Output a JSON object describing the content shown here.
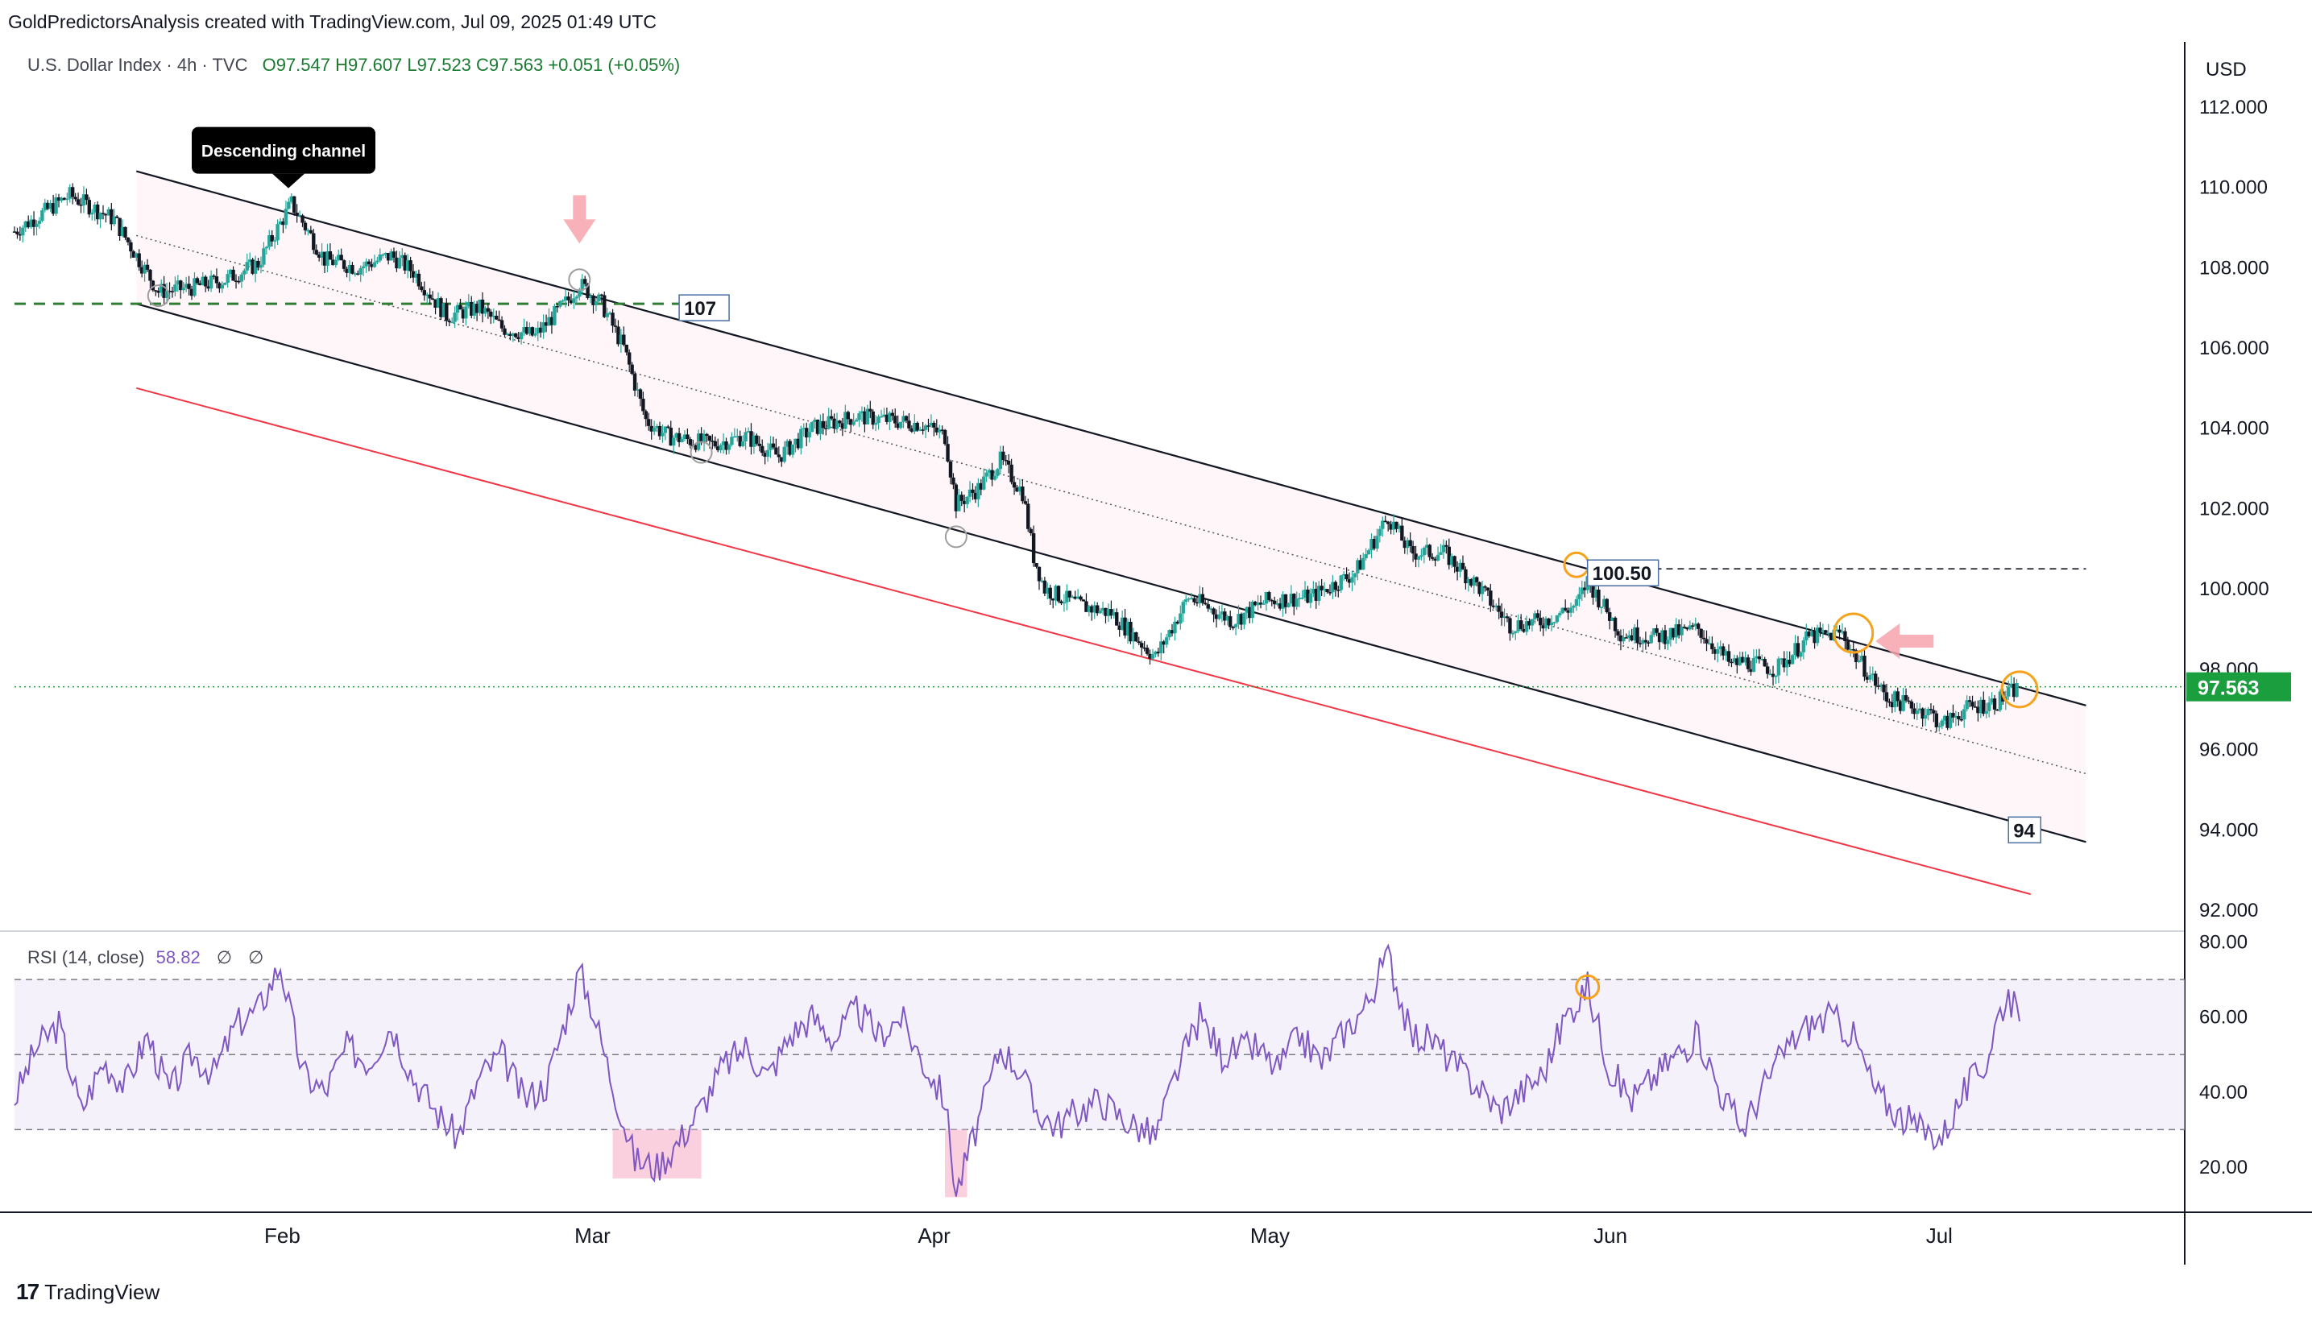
{
  "header": {
    "credit": "GoldPredictorsAnalysis created with TradingView.com, Jul 09, 2025 01:49 UTC"
  },
  "legend": {
    "symbol": "U.S. Dollar Index · 4h · TVC",
    "ohlc": "O97.547  H97.607  L97.523  C97.563  +0.051 (+0.05%)"
  },
  "rsi_legend": {
    "label": "RSI (14, close)",
    "value": "58.82",
    "na1": "∅",
    "na2": "∅"
  },
  "footer": {
    "brand": "TradingView",
    "logo": "17"
  },
  "colors": {
    "candle_up": "#26a69a",
    "candle_down": "#131722",
    "channel": "#131722",
    "red_line": "#f23645",
    "green_level": "#2e7d32",
    "rsi_line": "#7e57c2",
    "rsi_band": "#ede7f6",
    "price_tag": "#1b9e3e",
    "circle_orange": "#f7a21b",
    "arrow_pink": "#f7a3ad"
  },
  "chart_data": [
    {
      "type": "candlestick",
      "title": "U.S. Dollar Index · 4h · TVC",
      "currency": "USD",
      "x_labels": [
        "Feb",
        "Mar",
        "Apr",
        "May",
        "Jun",
        "Jul"
      ],
      "x_range": [
        "2025-01-08",
        "2025-07-20"
      ],
      "y_ticks": [
        "112.000",
        "110.000",
        "108.000",
        "106.000",
        "104.000",
        "102.000",
        "100.000",
        "98.000",
        "96.000",
        "94.000",
        "92.000"
      ],
      "ylim": [
        91.5,
        113.5
      ],
      "last_price": 97.563,
      "last_price_label": "97.563",
      "close_path": [
        [
          "2025-01-08",
          108.9
        ],
        [
          "2025-01-13",
          109.8
        ],
        [
          "2025-01-17",
          109.2
        ],
        [
          "2025-01-21",
          107.4
        ],
        [
          "2025-01-24",
          107.5
        ],
        [
          "2025-01-27",
          107.7
        ],
        [
          "2025-01-30",
          108.1
        ],
        [
          "2025-02-02",
          109.6
        ],
        [
          "2025-02-05",
          108.2
        ],
        [
          "2025-02-08",
          108.0
        ],
        [
          "2025-02-11",
          108.3
        ],
        [
          "2025-02-13",
          107.9
        ],
        [
          "2025-02-16",
          106.8
        ],
        [
          "2025-02-19",
          107.0
        ],
        [
          "2025-02-21",
          106.5
        ],
        [
          "2025-02-24",
          106.3
        ],
        [
          "2025-02-27",
          107.2
        ],
        [
          "2025-02-28",
          107.6
        ],
        [
          "2025-03-02",
          107.1
        ],
        [
          "2025-03-04",
          106.0
        ],
        [
          "2025-03-06",
          104.2
        ],
        [
          "2025-03-08",
          103.8
        ],
        [
          "2025-03-10",
          103.7
        ],
        [
          "2025-03-12",
          103.6
        ],
        [
          "2025-03-15",
          103.8
        ],
        [
          "2025-03-18",
          103.3
        ],
        [
          "2025-03-21",
          104.0
        ],
        [
          "2025-03-25",
          104.3
        ],
        [
          "2025-03-28",
          104.2
        ],
        [
          "2025-03-31",
          104.1
        ],
        [
          "2025-04-02",
          103.8
        ],
        [
          "2025-04-03",
          102.1
        ],
        [
          "2025-04-05",
          102.5
        ],
        [
          "2025-04-07",
          103.2
        ],
        [
          "2025-04-09",
          102.4
        ],
        [
          "2025-04-10",
          100.8
        ],
        [
          "2025-04-11",
          100.0
        ],
        [
          "2025-04-14",
          99.6
        ],
        [
          "2025-04-17",
          99.4
        ],
        [
          "2025-04-21",
          98.3
        ],
        [
          "2025-04-24",
          99.8
        ],
        [
          "2025-04-28",
          99.2
        ],
        [
          "2025-05-01",
          99.7
        ],
        [
          "2025-05-05",
          99.8
        ],
        [
          "2025-05-09",
          100.4
        ],
        [
          "2025-05-12",
          101.8
        ],
        [
          "2025-05-14",
          100.9
        ],
        [
          "2025-05-17",
          100.9
        ],
        [
          "2025-05-20",
          100.1
        ],
        [
          "2025-05-23",
          99.1
        ],
        [
          "2025-05-26",
          99.2
        ],
        [
          "2025-05-29",
          99.6
        ],
        [
          "2025-05-30",
          100.2
        ],
        [
          "2025-06-02",
          98.9
        ],
        [
          "2025-06-05",
          98.8
        ],
        [
          "2025-06-09",
          99.0
        ],
        [
          "2025-06-12",
          98.1
        ],
        [
          "2025-06-13",
          98.2
        ],
        [
          "2025-06-16",
          98.0
        ],
        [
          "2025-06-19",
          98.8
        ],
        [
          "2025-06-22",
          98.9
        ],
        [
          "2025-06-23",
          98.4
        ],
        [
          "2025-06-26",
          97.3
        ],
        [
          "2025-06-30",
          96.9
        ],
        [
          "2025-07-01",
          96.6
        ],
        [
          "2025-07-03",
          97.0
        ],
        [
          "2025-07-06",
          97.2
        ],
        [
          "2025-07-08",
          97.563
        ]
      ],
      "annotations": {
        "callout": "Descending channel",
        "level_107": "107",
        "level_100_50": "100.50",
        "level_94": "94"
      },
      "grid": false,
      "legend": "top-left"
    },
    {
      "type": "line",
      "title": "RSI (14, close)",
      "y_ticks": [
        "80.00",
        "60.00",
        "40.00",
        "20.00"
      ],
      "ylim": [
        8,
        82
      ],
      "bands": [
        30,
        50,
        70
      ],
      "last_value": 58.82,
      "values": [
        [
          "2025-01-08",
          38
        ],
        [
          "2025-01-10",
          52
        ],
        [
          "2025-01-12",
          58
        ],
        [
          "2025-01-14",
          35
        ],
        [
          "2025-01-16",
          48
        ],
        [
          "2025-01-18",
          42
        ],
        [
          "2025-01-20",
          55
        ],
        [
          "2025-01-22",
          40
        ],
        [
          "2025-01-24",
          50
        ],
        [
          "2025-01-26",
          45
        ],
        [
          "2025-01-28",
          58
        ],
        [
          "2025-01-30",
          62
        ],
        [
          "2025-02-01",
          74
        ],
        [
          "2025-02-03",
          45
        ],
        [
          "2025-02-05",
          40
        ],
        [
          "2025-02-07",
          52
        ],
        [
          "2025-02-09",
          48
        ],
        [
          "2025-02-11",
          58
        ],
        [
          "2025-02-13",
          44
        ],
        [
          "2025-02-15",
          35
        ],
        [
          "2025-02-17",
          28
        ],
        [
          "2025-02-19",
          44
        ],
        [
          "2025-02-21",
          50
        ],
        [
          "2025-02-23",
          38
        ],
        [
          "2025-02-25",
          42
        ],
        [
          "2025-02-27",
          62
        ],
        [
          "2025-02-28",
          72
        ],
        [
          "2025-03-01",
          64
        ],
        [
          "2025-03-03",
          42
        ],
        [
          "2025-03-05",
          22
        ],
        [
          "2025-03-07",
          20
        ],
        [
          "2025-03-09",
          27
        ],
        [
          "2025-03-11",
          36
        ],
        [
          "2025-03-13",
          47
        ],
        [
          "2025-03-15",
          52
        ],
        [
          "2025-03-17",
          44
        ],
        [
          "2025-03-19",
          55
        ],
        [
          "2025-03-21",
          60
        ],
        [
          "2025-03-23",
          54
        ],
        [
          "2025-03-25",
          62
        ],
        [
          "2025-03-27",
          55
        ],
        [
          "2025-03-29",
          60
        ],
        [
          "2025-03-31",
          48
        ],
        [
          "2025-04-02",
          38
        ],
        [
          "2025-04-03",
          13
        ],
        [
          "2025-04-05",
          32
        ],
        [
          "2025-04-07",
          52
        ],
        [
          "2025-04-09",
          45
        ],
        [
          "2025-04-10",
          36
        ],
        [
          "2025-04-12",
          31
        ],
        [
          "2025-04-14",
          35
        ],
        [
          "2025-04-16",
          38
        ],
        [
          "2025-04-18",
          33
        ],
        [
          "2025-04-21",
          28
        ],
        [
          "2025-04-23",
          46
        ],
        [
          "2025-04-25",
          60
        ],
        [
          "2025-04-27",
          50
        ],
        [
          "2025-04-30",
          52
        ],
        [
          "2025-05-02",
          46
        ],
        [
          "2025-05-04",
          55
        ],
        [
          "2025-05-06",
          48
        ],
        [
          "2025-05-08",
          56
        ],
        [
          "2025-05-10",
          63
        ],
        [
          "2025-05-12",
          77
        ],
        [
          "2025-05-14",
          55
        ],
        [
          "2025-05-16",
          54
        ],
        [
          "2025-05-18",
          47
        ],
        [
          "2025-05-20",
          42
        ],
        [
          "2025-05-22",
          35
        ],
        [
          "2025-05-24",
          40
        ],
        [
          "2025-05-26",
          45
        ],
        [
          "2025-05-28",
          60
        ],
        [
          "2025-05-30",
          68
        ],
        [
          "2025-06-01",
          46
        ],
        [
          "2025-06-03",
          38
        ],
        [
          "2025-06-05",
          44
        ],
        [
          "2025-06-07",
          50
        ],
        [
          "2025-06-09",
          55
        ],
        [
          "2025-06-11",
          40
        ],
        [
          "2025-06-13",
          30
        ],
        [
          "2025-06-15",
          42
        ],
        [
          "2025-06-17",
          52
        ],
        [
          "2025-06-19",
          58
        ],
        [
          "2025-06-21",
          60
        ],
        [
          "2025-06-23",
          55
        ],
        [
          "2025-06-25",
          40
        ],
        [
          "2025-06-27",
          34
        ],
        [
          "2025-06-29",
          30
        ],
        [
          "2025-07-01",
          28
        ],
        [
          "2025-07-03",
          40
        ],
        [
          "2025-07-05",
          48
        ],
        [
          "2025-07-06",
          60
        ],
        [
          "2025-07-07",
          66
        ],
        [
          "2025-07-08",
          58.82
        ]
      ]
    }
  ]
}
